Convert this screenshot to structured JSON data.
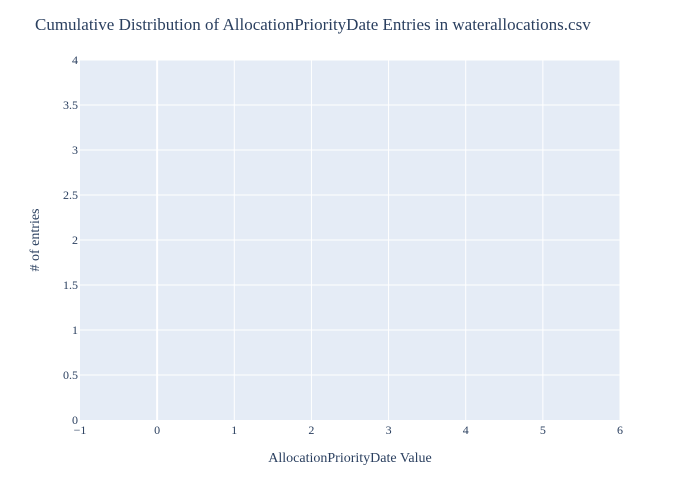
{
  "colors": {
    "plot_background": "#e5ecf6",
    "grid": "#ffffff",
    "text": "#2a3f5f",
    "page_background": "#ffffff"
  },
  "chart_data": {
    "type": "line",
    "title": "Cumulative Distribution of AllocationPriorityDate Entries in waterallocations.csv",
    "xlabel": "AllocationPriorityDate Value",
    "ylabel": "# of entries",
    "xlim": [
      -1,
      6
    ],
    "ylim": [
      0,
      4
    ],
    "x_ticks": [
      -1,
      0,
      1,
      2,
      3,
      4,
      5,
      6
    ],
    "x_tick_labels": [
      "−1",
      "0",
      "1",
      "2",
      "3",
      "4",
      "5",
      "6"
    ],
    "y_ticks": [
      0,
      0.5,
      1,
      1.5,
      2,
      2.5,
      3,
      3.5,
      4
    ],
    "y_tick_labels": [
      "0",
      "0.5",
      "1",
      "1.5",
      "2",
      "2.5",
      "3",
      "3.5",
      "4"
    ],
    "grid": true,
    "series": []
  }
}
